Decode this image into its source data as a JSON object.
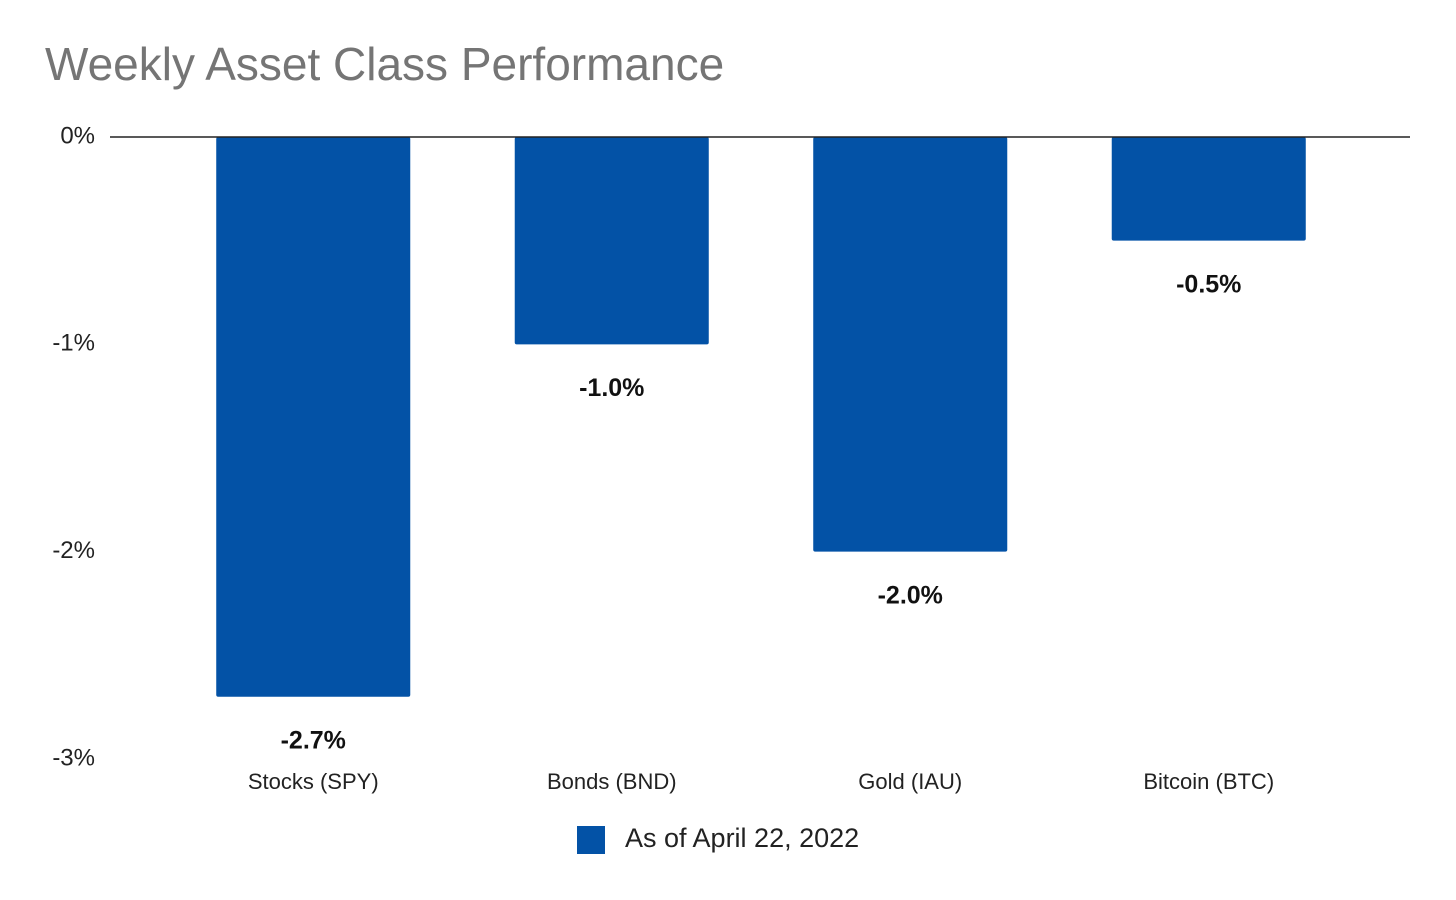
{
  "chart_data": {
    "type": "bar",
    "title": "Weekly Asset Class Performance",
    "categories": [
      "Stocks (SPY)",
      "Bonds (BND)",
      "Gold (IAU)",
      "Bitcoin (BTC)"
    ],
    "series": [
      {
        "name": "As of April 22, 2022",
        "color": "#0352a6",
        "values": [
          -2.7,
          -1.0,
          -2.0,
          -0.5
        ],
        "value_labels": [
          "-2.7%",
          "-1.0%",
          "-2.0%",
          "-0.5%"
        ]
      }
    ],
    "ylim": [
      -3,
      0
    ],
    "yticks": [
      {
        "value": 0,
        "label": "0%"
      },
      {
        "value": -1,
        "label": "-1%"
      },
      {
        "value": -2,
        "label": "-2%"
      },
      {
        "value": -3,
        "label": "-3%"
      }
    ],
    "grid": false,
    "legend": "bottom"
  }
}
